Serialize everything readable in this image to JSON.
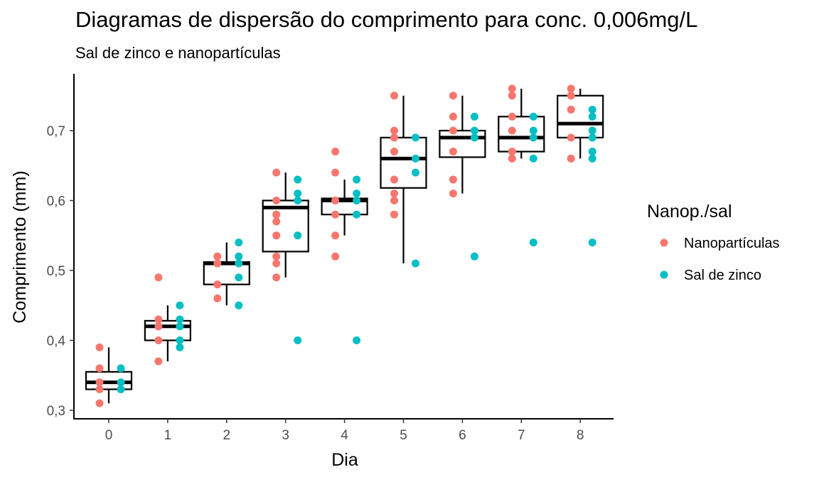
{
  "chart_data": {
    "type": "scatter",
    "title": "Diagramas de dispersão do comprimento para conc. 0,006mg/L",
    "subtitle": "Sal de zinco e nanopartículas",
    "xlabel": "Dia",
    "ylabel": "Comprimento (mm)",
    "x_categories": [
      "0",
      "1",
      "2",
      "3",
      "4",
      "5",
      "6",
      "7",
      "8"
    ],
    "ylim": [
      0.29,
      0.78
    ],
    "y_ticks": [
      0.3,
      0.4,
      0.5,
      0.6,
      0.7
    ],
    "y_tick_labels": [
      "0,3",
      "0,4",
      "0,5",
      "0,6",
      "0,7"
    ],
    "grid": false,
    "legend": {
      "title": "Nanop./sal",
      "position": "right",
      "entries": [
        {
          "label": "Nanopartículas",
          "color": "#F8766D"
        },
        {
          "label": "Sal de zinco",
          "color": "#00BFC4"
        }
      ]
    },
    "boxplots": [
      {
        "day": 0,
        "min": 0.31,
        "q1": 0.33,
        "median": 0.34,
        "q3": 0.355,
        "max": 0.39
      },
      {
        "day": 1,
        "min": 0.37,
        "q1": 0.4,
        "median": 0.42,
        "q3": 0.428,
        "max": 0.45
      },
      {
        "day": 2,
        "min": 0.45,
        "q1": 0.48,
        "median": 0.51,
        "q3": 0.512,
        "max": 0.54
      },
      {
        "day": 3,
        "min": 0.49,
        "q1": 0.527,
        "median": 0.59,
        "q3": 0.6,
        "max": 0.64
      },
      {
        "day": 4,
        "min": 0.55,
        "q1": 0.58,
        "median": 0.6,
        "q3": 0.603,
        "max": 0.63
      },
      {
        "day": 5,
        "min": 0.51,
        "q1": 0.618,
        "median": 0.66,
        "q3": 0.69,
        "max": 0.75
      },
      {
        "day": 6,
        "min": 0.61,
        "q1": 0.662,
        "median": 0.69,
        "q3": 0.7,
        "max": 0.75
      },
      {
        "day": 7,
        "min": 0.66,
        "q1": 0.67,
        "median": 0.69,
        "q3": 0.72,
        "max": 0.76
      },
      {
        "day": 8,
        "min": 0.66,
        "q1": 0.69,
        "median": 0.71,
        "q3": 0.75,
        "max": 0.76
      }
    ],
    "series": [
      {
        "name": "Nanopartículas",
        "color": "#F8766D",
        "points": [
          {
            "day": 0,
            "values": [
              0.39,
              0.36,
              0.34,
              0.33,
              0.31
            ]
          },
          {
            "day": 1,
            "values": [
              0.49,
              0.43,
              0.42,
              0.4,
              0.37
            ]
          },
          {
            "day": 2,
            "values": [
              0.52,
              0.51,
              0.48,
              0.46
            ]
          },
          {
            "day": 3,
            "values": [
              0.64,
              0.6,
              0.58,
              0.57,
              0.55,
              0.52,
              0.51,
              0.49
            ]
          },
          {
            "day": 4,
            "values": [
              0.67,
              0.64,
              0.6,
              0.58,
              0.55,
              0.52
            ]
          },
          {
            "day": 5,
            "values": [
              0.75,
              0.7,
              0.69,
              0.67,
              0.63,
              0.61,
              0.6,
              0.58
            ]
          },
          {
            "day": 6,
            "values": [
              0.75,
              0.72,
              0.7,
              0.67,
              0.63,
              0.61
            ]
          },
          {
            "day": 7,
            "values": [
              0.76,
              0.75,
              0.72,
              0.7,
              0.67,
              0.66
            ]
          },
          {
            "day": 8,
            "values": [
              0.76,
              0.75,
              0.73,
              0.69,
              0.66
            ]
          }
        ]
      },
      {
        "name": "Sal de zinco",
        "color": "#00BFC4",
        "points": [
          {
            "day": 0,
            "values": [
              0.36,
              0.34,
              0.33
            ]
          },
          {
            "day": 1,
            "values": [
              0.45,
              0.43,
              0.42,
              0.4,
              0.39
            ]
          },
          {
            "day": 2,
            "values": [
              0.54,
              0.52,
              0.51,
              0.49,
              0.45
            ]
          },
          {
            "day": 3,
            "values": [
              0.63,
              0.61,
              0.6,
              0.55,
              0.4
            ]
          },
          {
            "day": 4,
            "values": [
              0.63,
              0.61,
              0.6,
              0.58,
              0.4
            ]
          },
          {
            "day": 5,
            "values": [
              0.69,
              0.66,
              0.64,
              0.51
            ]
          },
          {
            "day": 6,
            "values": [
              0.72,
              0.7,
              0.69,
              0.52
            ]
          },
          {
            "day": 7,
            "values": [
              0.72,
              0.7,
              0.69,
              0.66,
              0.54
            ]
          },
          {
            "day": 8,
            "values": [
              0.73,
              0.72,
              0.7,
              0.69,
              0.67,
              0.66,
              0.54
            ]
          }
        ]
      }
    ]
  }
}
